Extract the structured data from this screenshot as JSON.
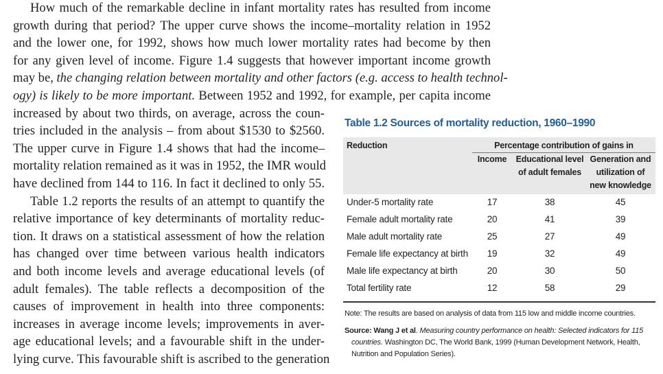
{
  "body": {
    "paragraphs": [
      {
        "lines": [
          "How much of the remarkable decline in infant mortality rates has resulted from income",
          "growth during that period? The upper curve shows the income–mortality relation in 1952",
          "and the lower one, for 1992, shows how much lower mortality rates had become by then",
          "for any given level of income. Figure 1.4 suggests that however important income growth",
          [
            "may be, ",
            {
              "italic": "the changing relation between mortality and other factors (e.g. access to health technol-"
            }
          ],
          [
            {
              "italic": "ogy) is likely to be more important."
            },
            " Between 1952 and 1992, for example, per capita income"
          ],
          "increased by about two thirds, on average, across the coun-",
          "tries included in the analysis – from about $1530 to $2560.",
          "The upper curve in Figure 1.4 shows that had the income–",
          "mortality relation remained as it was in 1952, the IMR would",
          "have declined from 144 to 116. In fact it declined to only 55."
        ]
      },
      {
        "lines": [
          "Table 1.2 reports the results of an attempt to quantify the",
          "relative importance of key determinants of mortality reduc-",
          "tion. It draws on a statistical assessment of how the relation",
          "has changed over time between various health indicators",
          "and both income levels and average educational levels (of",
          "adult females). The table reflects a decomposition of the",
          "causes of improvement in health into three components:",
          "increases in average income levels; improvements in aver-",
          "age educational levels; and a favourable shift in the under-",
          "lying curve. This favourable shift is ascribed to the generation"
        ]
      }
    ]
  },
  "table": {
    "title": "Table 1.2  Sources of mortality reduction, 1960–1990",
    "header": {
      "reduction": "Reduction",
      "group": "Percentage contribution of gains in",
      "columns": [
        [
          "Income"
        ],
        [
          "Educational level",
          "of adult females"
        ],
        [
          "Generation and",
          "utilization of",
          "new knowledge"
        ]
      ]
    },
    "rows": [
      [
        "Under-5 mortality rate",
        17,
        38,
        45
      ],
      [
        "Female adult mortality rate",
        20,
        41,
        39
      ],
      [
        "Male adult mortality rate",
        25,
        27,
        49
      ],
      [
        "Female life expectancy at birth",
        19,
        32,
        49
      ],
      [
        "Male life expectancy at birth",
        20,
        30,
        50
      ],
      [
        "Total fertility rate",
        12,
        58,
        29
      ]
    ]
  },
  "note": "Note: The results are based on analysis of data from 115 low and middle income countries.",
  "source": {
    "label": "Source:",
    "author": "Wang J et al",
    "title": "Measuring country performance on health: Selected indicators for 115 countries.",
    "rest": "Washington DC, The World Bank, 1999 (Human Development Network, Health, Nutrition and Population Series)."
  }
}
